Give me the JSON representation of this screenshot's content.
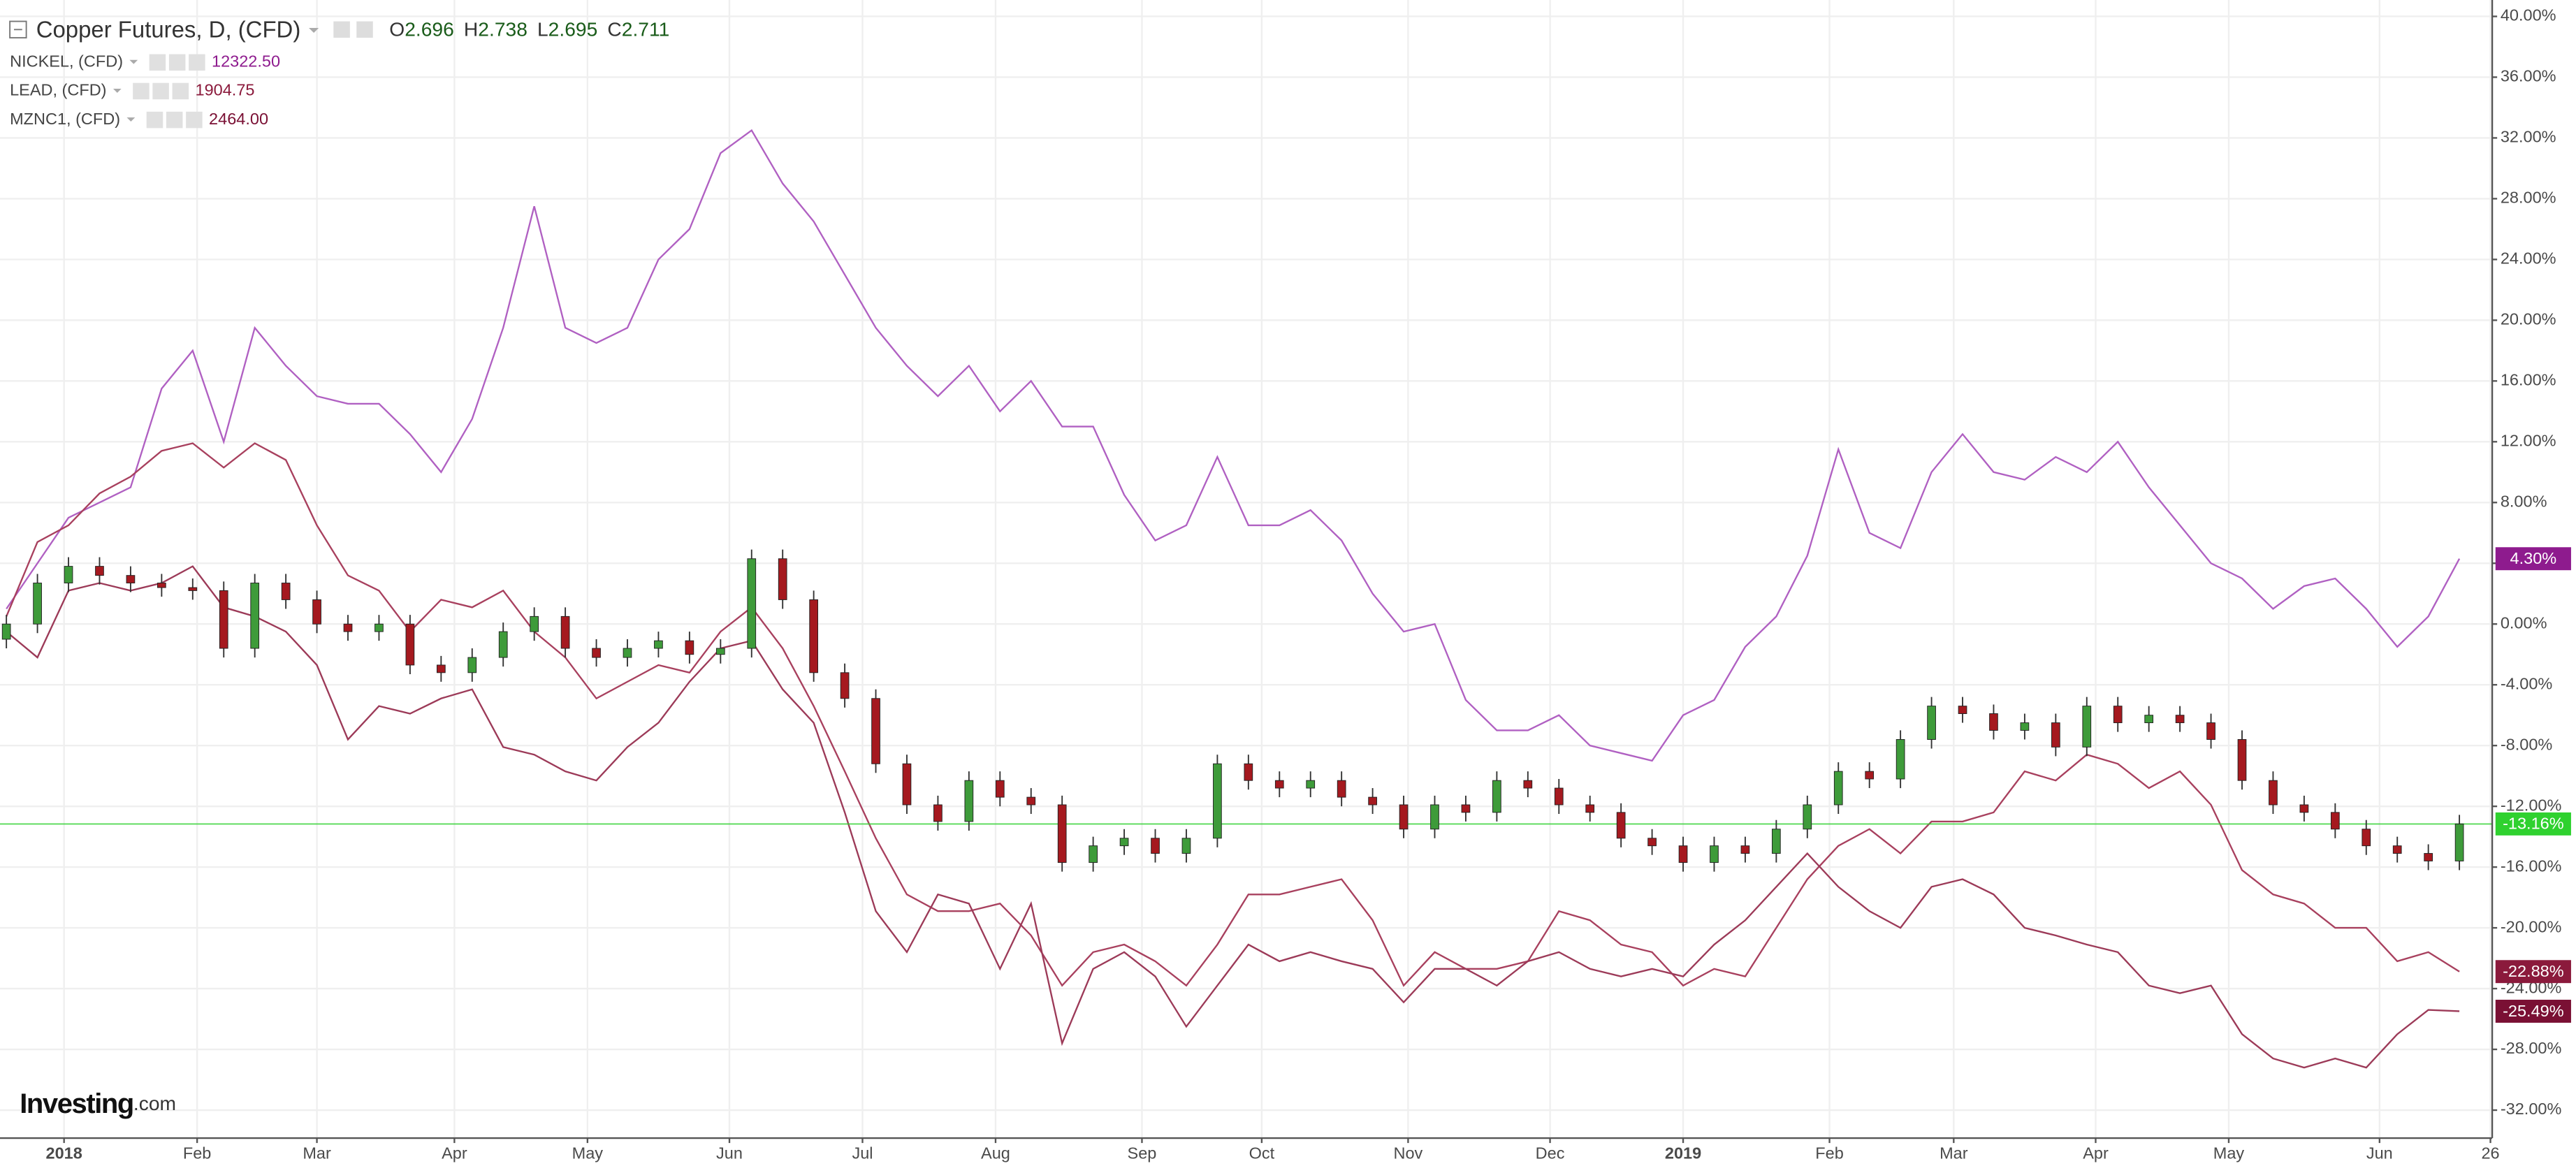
{
  "chart_data": {
    "type": "candlestick",
    "title": "Copper Futures, D, (CFD)",
    "ohlc_header": [
      {
        "label": "O",
        "value": 2.696
      },
      {
        "label": "H",
        "value": 2.738
      },
      {
        "label": "L",
        "value": 2.695
      },
      {
        "label": "C",
        "value": 2.711
      }
    ],
    "x": [
      -13,
      -6,
      1,
      8,
      15,
      22,
      29,
      36,
      43,
      50,
      57,
      64,
      71,
      78,
      85,
      92,
      99,
      106,
      113,
      120,
      127,
      134,
      141,
      148,
      155,
      162,
      169,
      176,
      183,
      190,
      197,
      204,
      211,
      218,
      225,
      232,
      239,
      246,
      253,
      260,
      267,
      274,
      281,
      288,
      295,
      302,
      309,
      316,
      323,
      330,
      337,
      344,
      351,
      358,
      365,
      372,
      379,
      386,
      393,
      400,
      407,
      414,
      421,
      428,
      435,
      442,
      449,
      456,
      463,
      470,
      477,
      484,
      491,
      498,
      505,
      512,
      519,
      526,
      533,
      540
    ],
    "open": [
      -1.0,
      0,
      2.7,
      3.8,
      3.2,
      2.7,
      2.4,
      2.2,
      -1.6,
      2.7,
      1.6,
      0,
      -0.5,
      0,
      -2.7,
      -3.2,
      -2.2,
      -0.5,
      0.5,
      -1.6,
      -2.2,
      -1.6,
      -1.1,
      -2.0,
      -1.6,
      4.3,
      1.6,
      -3.2,
      -4.9,
      -9.2,
      -11.9,
      -13,
      -10.3,
      -11.4,
      -11.9,
      -15.7,
      -14.6,
      -14.1,
      -15.1,
      -14.1,
      -9.2,
      -10.3,
      -10.8,
      -10.3,
      -11.4,
      -11.9,
      -13.5,
      -11.9,
      -12.4,
      -10.3,
      -10.8,
      -11.9,
      -12.4,
      -14.1,
      -14.6,
      -15.7,
      -14.6,
      -15.1,
      -13.5,
      -11.9,
      -9.7,
      -10.2,
      -7.6,
      -5.4,
      -5.9,
      -7,
      -6.5,
      -8.1,
      -5.4,
      -6.5,
      -6.0,
      -6.5,
      -7.6,
      -10.3,
      -11.9,
      -12.4,
      -13.5,
      -14.6,
      -15.1,
      -15.6
    ],
    "high": [
      0.6,
      3.3,
      4.4,
      4.4,
      3.8,
      3.3,
      3.0,
      2.8,
      3.3,
      3.3,
      2.2,
      0.6,
      0.6,
      0.6,
      -2.1,
      -1.6,
      0.1,
      1.1,
      1.1,
      -1.0,
      -1.0,
      -0.5,
      -0.5,
      -1.0,
      4.9,
      4.9,
      2.2,
      -2.6,
      -4.3,
      -8.6,
      -11.3,
      -9.7,
      -9.7,
      -10.8,
      -11.3,
      -14.0,
      -13.5,
      -13.5,
      -13.5,
      -8.6,
      -8.6,
      -9.7,
      -9.7,
      -9.7,
      -10.8,
      -11.3,
      -11.3,
      -11.3,
      -9.7,
      -9.7,
      -10.2,
      -11.3,
      -11.8,
      -13.5,
      -14.0,
      -14.0,
      -14.0,
      -12.9,
      -11.3,
      -9.1,
      -9.1,
      -7.0,
      -4.8,
      -4.8,
      -5.3,
      -5.9,
      -5.9,
      -4.8,
      -4.8,
      -5.4,
      -5.4,
      -5.9,
      -7.0,
      -9.7,
      -11.3,
      -11.8,
      -12.9,
      -14.0,
      -14.5,
      -12.56
    ],
    "low": [
      -1.6,
      -0.6,
      2.1,
      2.6,
      2.1,
      1.8,
      1.6,
      -2.2,
      -2.2,
      1.0,
      -0.6,
      -1.1,
      -1.1,
      -3.3,
      -3.8,
      -3.8,
      -2.8,
      -1.1,
      -2.2,
      -2.8,
      -2.8,
      -2.2,
      -2.6,
      -2.6,
      -2.2,
      1.0,
      -3.8,
      -5.5,
      -9.8,
      -12.5,
      -13.6,
      -13.6,
      -12,
      -12.5,
      -16.3,
      -16.3,
      -15.2,
      -15.7,
      -15.7,
      -14.7,
      -10.9,
      -11.4,
      -11.4,
      -12,
      -12.5,
      -14.1,
      -14.1,
      -13,
      -13,
      -11.4,
      -12.5,
      -13,
      -14.7,
      -15.2,
      -16.3,
      -16.3,
      -15.7,
      -15.7,
      -14.1,
      -12.5,
      -10.8,
      -10.8,
      -8.2,
      -6.5,
      -7.6,
      -7.6,
      -8.7,
      -8.7,
      -7.1,
      -7.1,
      -7.1,
      -8.2,
      -10.9,
      -12.5,
      -13,
      -14.1,
      -15.2,
      -15.7,
      -16.2,
      -16.2
    ],
    "close": [
      0,
      2.7,
      3.8,
      3.2,
      2.7,
      2.4,
      2.2,
      -1.6,
      2.7,
      1.6,
      0,
      -0.5,
      0,
      -2.7,
      -3.2,
      -2.2,
      -0.5,
      0.5,
      -1.6,
      -2.2,
      -1.6,
      -1.1,
      -2.0,
      -1.6,
      4.3,
      1.6,
      -3.2,
      -4.9,
      -9.2,
      -11.9,
      -13,
      -10.3,
      -11.4,
      -11.9,
      -15.7,
      -14.6,
      -14.1,
      -15.1,
      -14.1,
      -9.2,
      -10.3,
      -10.8,
      -10.3,
      -11.4,
      -11.9,
      -13.5,
      -11.9,
      -12.4,
      -10.3,
      -10.8,
      -11.9,
      -12.4,
      -14.1,
      -14.6,
      -15.7,
      -14.6,
      -15.1,
      -13.5,
      -11.9,
      -9.7,
      -10.2,
      -7.6,
      -5.4,
      -5.9,
      -7,
      -6.5,
      -8.1,
      -5.4,
      -6.5,
      -6.0,
      -6.5,
      -7.6,
      -10.3,
      -11.9,
      -12.4,
      -13.5,
      -14.6,
      -15.1,
      -15.6,
      -13.16
    ],
    "up_color": "#3e9b3a",
    "down_color": "#a5191f",
    "price_line": {
      "value": -13.16,
      "label": "-13.16%",
      "color": "#2fd12f"
    },
    "series": [
      {
        "name": "NICKEL, (CFD)",
        "color": "#b060c2",
        "label_color": "#8e1b8e",
        "last": "12322.50",
        "last_label": "4.30%",
        "values": [
          1,
          4,
          7,
          8,
          9,
          15.5,
          18,
          12,
          19.5,
          17,
          15,
          14.5,
          14.5,
          12.5,
          10,
          13.5,
          19.5,
          27.5,
          19.5,
          18.5,
          19.5,
          24,
          26,
          31,
          32.5,
          29,
          26.5,
          23,
          19.5,
          17,
          15,
          17,
          14,
          16,
          13,
          13,
          8.5,
          5.5,
          6.5,
          11,
          6.5,
          6.5,
          7.5,
          5.5,
          2,
          -0.5,
          0,
          -5,
          -7,
          -7,
          -6,
          -8,
          -8.5,
          -9,
          -6,
          -5,
          -1.5,
          0.5,
          4.5,
          11.5,
          6,
          5,
          10,
          12.5,
          10,
          9.5,
          11,
          10,
          12,
          9,
          6.5,
          4,
          3,
          1,
          2.5,
          3,
          1,
          -1.5,
          0.5,
          4.3
        ]
      },
      {
        "name": "LEAD, (CFD)",
        "color": "#a8405e",
        "label_color": "#8b1a3c",
        "last": "1904.75",
        "last_label": "-22.88%",
        "values": [
          0.5,
          5.4,
          6.5,
          8.6,
          9.7,
          11.4,
          11.9,
          10.3,
          11.9,
          10.8,
          6.5,
          3.2,
          2.2,
          -0.5,
          1.6,
          1.1,
          2.2,
          -0.5,
          -2.2,
          -4.9,
          -3.8,
          -2.7,
          -3.2,
          -0.5,
          1.1,
          -1.6,
          -5.4,
          -9.7,
          -14.1,
          -17.8,
          -18.9,
          -18.9,
          -18.4,
          -20.5,
          -23.8,
          -21.6,
          -21.1,
          -22.2,
          -23.8,
          -21.1,
          -17.8,
          -17.8,
          -17.3,
          -16.8,
          -19.5,
          -23.8,
          -21.6,
          -22.7,
          -22.7,
          -22.2,
          -18.9,
          -19.5,
          -21.1,
          -21.6,
          -23.8,
          -22.7,
          -23.2,
          -20,
          -16.8,
          -14.6,
          -13.5,
          -15.1,
          -13,
          -13,
          -12.4,
          -9.7,
          -10.3,
          -8.6,
          -9.2,
          -10.8,
          -9.7,
          -11.9,
          -16.2,
          -17.8,
          -18.4,
          -20,
          -20,
          -22.2,
          -21.6,
          -22.88
        ]
      },
      {
        "name": "MZNC1, (CFD)",
        "color": "#9c3a58",
        "label_color": "#7a1034",
        "last": "2464.00",
        "last_label": "-25.49%",
        "values": [
          -0.5,
          -2.2,
          2.2,
          2.7,
          2.2,
          2.7,
          3.8,
          1.1,
          0.5,
          -0.5,
          -2.7,
          -7.6,
          -5.4,
          -5.9,
          -4.9,
          -4.3,
          -8.1,
          -8.6,
          -9.7,
          -10.3,
          -8.1,
          -6.5,
          -3.8,
          -1.6,
          -1.1,
          -4.3,
          -6.5,
          -12.4,
          -18.9,
          -21.6,
          -17.8,
          -18.4,
          -22.7,
          -18.4,
          -27.6,
          -22.7,
          -21.6,
          -23.2,
          -26.5,
          -23.8,
          -21.1,
          -22.2,
          -21.6,
          -22.2,
          -22.7,
          -24.9,
          -22.7,
          -22.7,
          -23.8,
          -22.2,
          -21.6,
          -22.7,
          -23.2,
          -22.7,
          -23.2,
          -21.1,
          -19.5,
          -17.3,
          -15.1,
          -17.3,
          -18.9,
          -20,
          -17.3,
          -16.8,
          -17.8,
          -20,
          -20.5,
          -21.1,
          -21.6,
          -23.8,
          -24.3,
          -23.8,
          -27,
          -28.6,
          -29.2,
          -28.6,
          -29.2,
          -27,
          -25.4,
          -25.49
        ]
      }
    ],
    "xlim": [
      -14.44,
      547.4
    ],
    "xticks": [
      {
        "value": 0,
        "label": "2018"
      },
      {
        "value": 30,
        "label": "Feb"
      },
      {
        "value": 57,
        "label": "Mar"
      },
      {
        "value": 88,
        "label": "Apr"
      },
      {
        "value": 118,
        "label": "May"
      },
      {
        "value": 150,
        "label": "Jun"
      },
      {
        "value": 180,
        "label": "Jul"
      },
      {
        "value": 210,
        "label": "Aug"
      },
      {
        "value": 243,
        "label": "Sep"
      },
      {
        "value": 270,
        "label": "Oct"
      },
      {
        "value": 303,
        "label": "Nov"
      },
      {
        "value": 335,
        "label": "Dec"
      },
      {
        "value": 365,
        "label": "2019"
      },
      {
        "value": 398,
        "label": "Feb"
      },
      {
        "value": 426,
        "label": "Mar"
      },
      {
        "value": 458,
        "label": "Apr"
      },
      {
        "value": 488,
        "label": "May"
      },
      {
        "value": 522,
        "label": "Jun"
      },
      {
        "value": 547,
        "label": "26"
      }
    ],
    "ylim": [
      -33.84,
      41.08
    ],
    "yticks": [
      {
        "value": 40,
        "label": "40.00%"
      },
      {
        "value": 36,
        "label": "36.00%"
      },
      {
        "value": 32,
        "label": "32.00%"
      },
      {
        "value": 28,
        "label": "28.00%"
      },
      {
        "value": 24,
        "label": "24.00%"
      },
      {
        "value": 20,
        "label": "20.00%"
      },
      {
        "value": 16,
        "label": "16.00%"
      },
      {
        "value": 12,
        "label": "12.00%"
      },
      {
        "value": 8,
        "label": "8.00%"
      },
      {
        "value": 4,
        "label": "4.00%"
      },
      {
        "value": 0,
        "label": "0.00%"
      },
      {
        "value": -4,
        "label": "-4.00%"
      },
      {
        "value": -8,
        "label": "-8.00%"
      },
      {
        "value": -12,
        "label": "-12.00%"
      },
      {
        "value": -16,
        "label": "-16.00%"
      },
      {
        "value": -20,
        "label": "-20.00%"
      },
      {
        "value": -24,
        "label": "-24.00%"
      },
      {
        "value": -28,
        "label": "-28.00%"
      },
      {
        "value": -32,
        "label": "-32.00%"
      }
    ],
    "grid": true,
    "logo": {
      "brand": "Investing",
      "suffix": ".com"
    }
  }
}
